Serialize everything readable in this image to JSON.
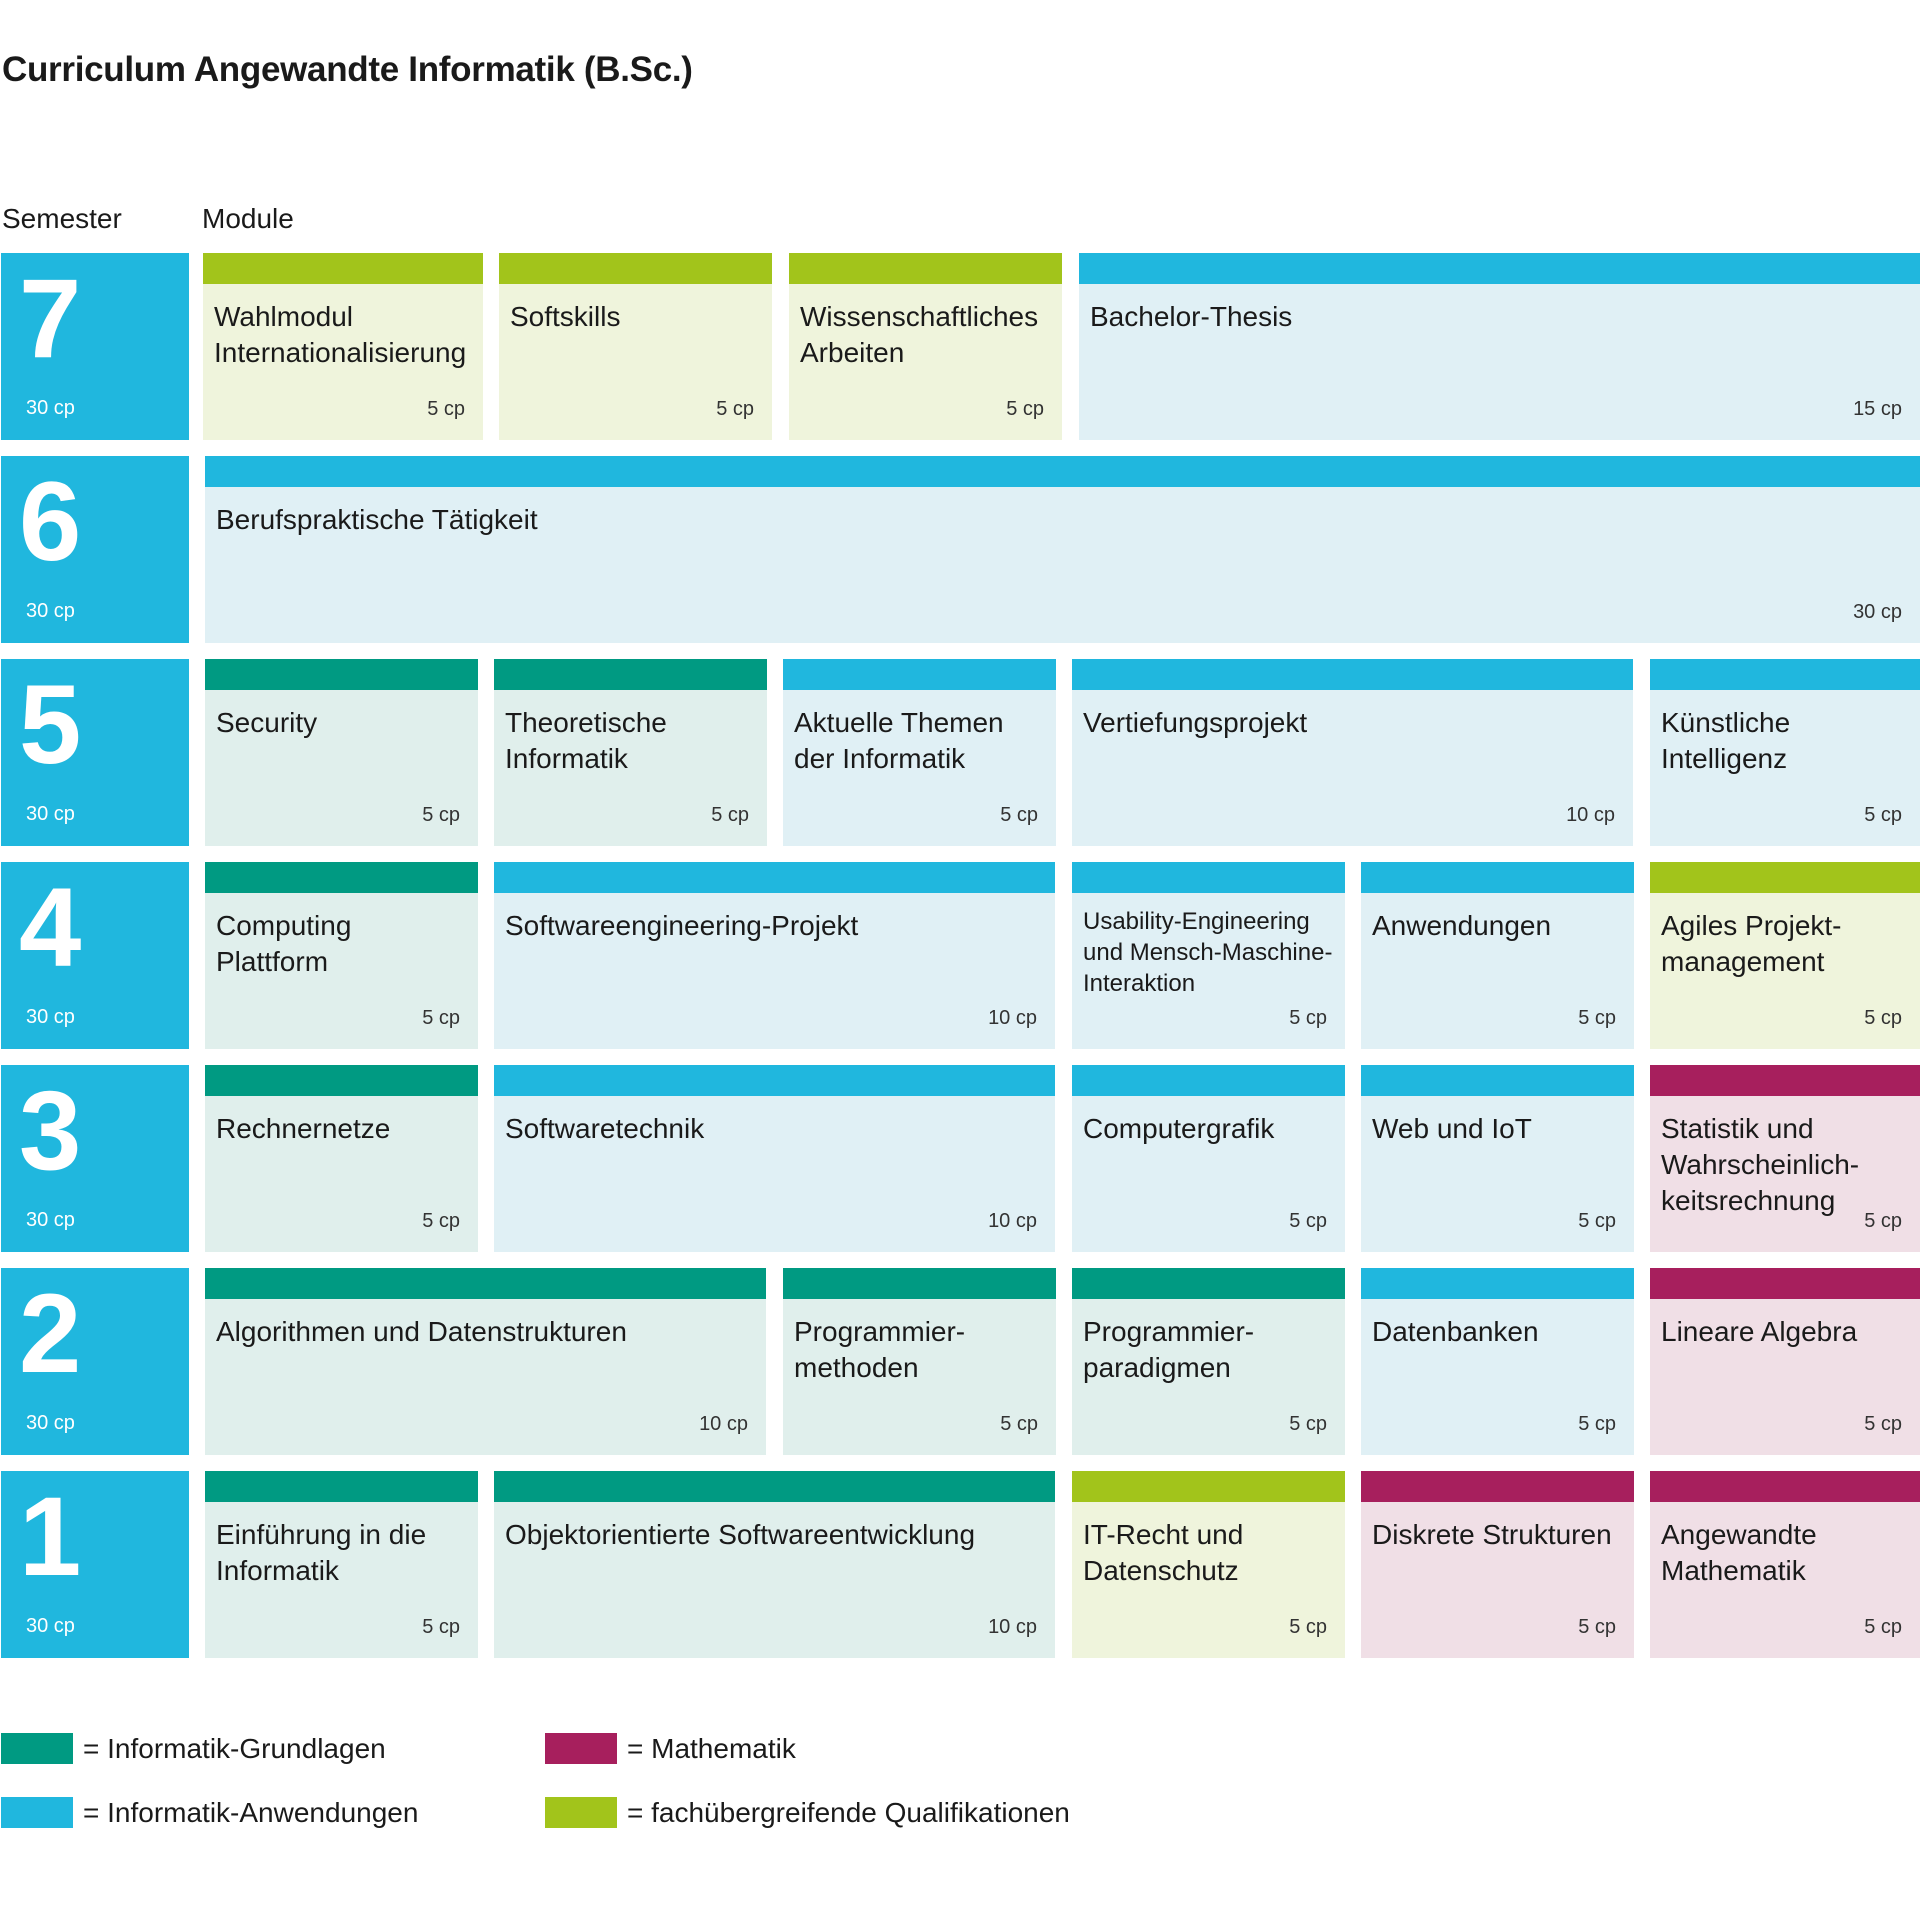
{
  "title": "Curriculum Angewandte Informatik (B.Sc.)",
  "headers": {
    "semester": "Semester",
    "modules": "Module"
  },
  "categories": {
    "grund": {
      "label": "= Informatik-Grundlagen",
      "color": "#009a82"
    },
    "anw": {
      "label": "= Informatik-Anwendungen",
      "color": "#20b7de"
    },
    "math": {
      "label": "= Mathematik",
      "color": "#a71f5d"
    },
    "fach": {
      "label": "= fachübergreifende Qualifikationen",
      "color": "#a2c41b"
    }
  },
  "semesters": [
    {
      "number": "7",
      "cp": "30 cp"
    },
    {
      "number": "6",
      "cp": "30 cp"
    },
    {
      "number": "5",
      "cp": "30 cp"
    },
    {
      "number": "4",
      "cp": "30 cp"
    },
    {
      "number": "3",
      "cp": "30 cp"
    },
    {
      "number": "2",
      "cp": "30 cp"
    },
    {
      "number": "1",
      "cp": "30 cp"
    }
  ],
  "modules": [
    {
      "semester": "7",
      "name": "Wahlmodul Internationalisierung",
      "cp": "5 cp",
      "category": "fach"
    },
    {
      "semester": "7",
      "name": "Softskills",
      "cp": "5 cp",
      "category": "fach"
    },
    {
      "semester": "7",
      "name": "Wissenschaftliches Arbeiten",
      "cp": "5 cp",
      "category": "fach"
    },
    {
      "semester": "7",
      "name": "Bachelor-Thesis",
      "cp": "15 cp",
      "category": "anw"
    },
    {
      "semester": "6",
      "name": "Berufspraktische Tätigkeit",
      "cp": "30 cp",
      "category": "anw"
    },
    {
      "semester": "5",
      "name": "Security",
      "cp": "5 cp",
      "category": "grund"
    },
    {
      "semester": "5",
      "name": "Theoretische Informatik",
      "cp": "5 cp",
      "category": "grund"
    },
    {
      "semester": "5",
      "name": "Aktuelle Themen der Informatik",
      "cp": "5 cp",
      "category": "anw"
    },
    {
      "semester": "5",
      "name": "Vertiefungsprojekt",
      "cp": "10 cp",
      "category": "anw"
    },
    {
      "semester": "5",
      "name": "Künstliche Intelligenz",
      "cp": "5 cp",
      "category": "anw"
    },
    {
      "semester": "4",
      "name": "Computing Plattform",
      "cp": "5 cp",
      "category": "grund"
    },
    {
      "semester": "4",
      "name": "Softwareengineering-Projekt",
      "cp": "10 cp",
      "category": "anw"
    },
    {
      "semester": "4",
      "name": "Usability-Engineering und Mensch-Maschine-Interaktion",
      "cp": "5 cp",
      "category": "anw"
    },
    {
      "semester": "4",
      "name": "Anwendungen",
      "cp": "5 cp",
      "category": "anw"
    },
    {
      "semester": "4",
      "name": "Agiles Projekt-management",
      "cp": "5 cp",
      "category": "fach"
    },
    {
      "semester": "3",
      "name": "Rechnernetze",
      "cp": "5 cp",
      "category": "grund"
    },
    {
      "semester": "3",
      "name": "Softwaretechnik",
      "cp": "10 cp",
      "category": "anw"
    },
    {
      "semester": "3",
      "name": "Computergrafik",
      "cp": "5 cp",
      "category": "anw"
    },
    {
      "semester": "3",
      "name": "Web und IoT",
      "cp": "5 cp",
      "category": "anw"
    },
    {
      "semester": "3",
      "name": "Statistik und Wahrscheinlich-keitsrechnung",
      "cp": "5 cp",
      "category": "math"
    },
    {
      "semester": "2",
      "name": "Algorithmen und Datenstrukturen",
      "cp": "10 cp",
      "category": "grund"
    },
    {
      "semester": "2",
      "name": "Programmier-methoden",
      "cp": "5 cp",
      "category": "grund"
    },
    {
      "semester": "2",
      "name": "Programmier-paradigmen",
      "cp": "5 cp",
      "category": "grund"
    },
    {
      "semester": "2",
      "name": "Datenbanken",
      "cp": "5 cp",
      "category": "anw"
    },
    {
      "semester": "2",
      "name": "Lineare Algebra",
      "cp": "5 cp",
      "category": "math"
    },
    {
      "semester": "1",
      "name": "Einführung in die Informatik",
      "cp": "5 cp",
      "category": "grund"
    },
    {
      "semester": "1",
      "name": "Objektorientierte Softwareentwicklung",
      "cp": "10 cp",
      "category": "grund"
    },
    {
      "semester": "1",
      "name": "IT-Recht und Datenschutz",
      "cp": "5 cp",
      "category": "fach"
    },
    {
      "semester": "1",
      "name": "Diskrete Strukturen",
      "cp": "5 cp",
      "category": "math"
    },
    {
      "semester": "1",
      "name": "Angewandte Mathematik",
      "cp": "5 cp",
      "category": "math"
    }
  ]
}
